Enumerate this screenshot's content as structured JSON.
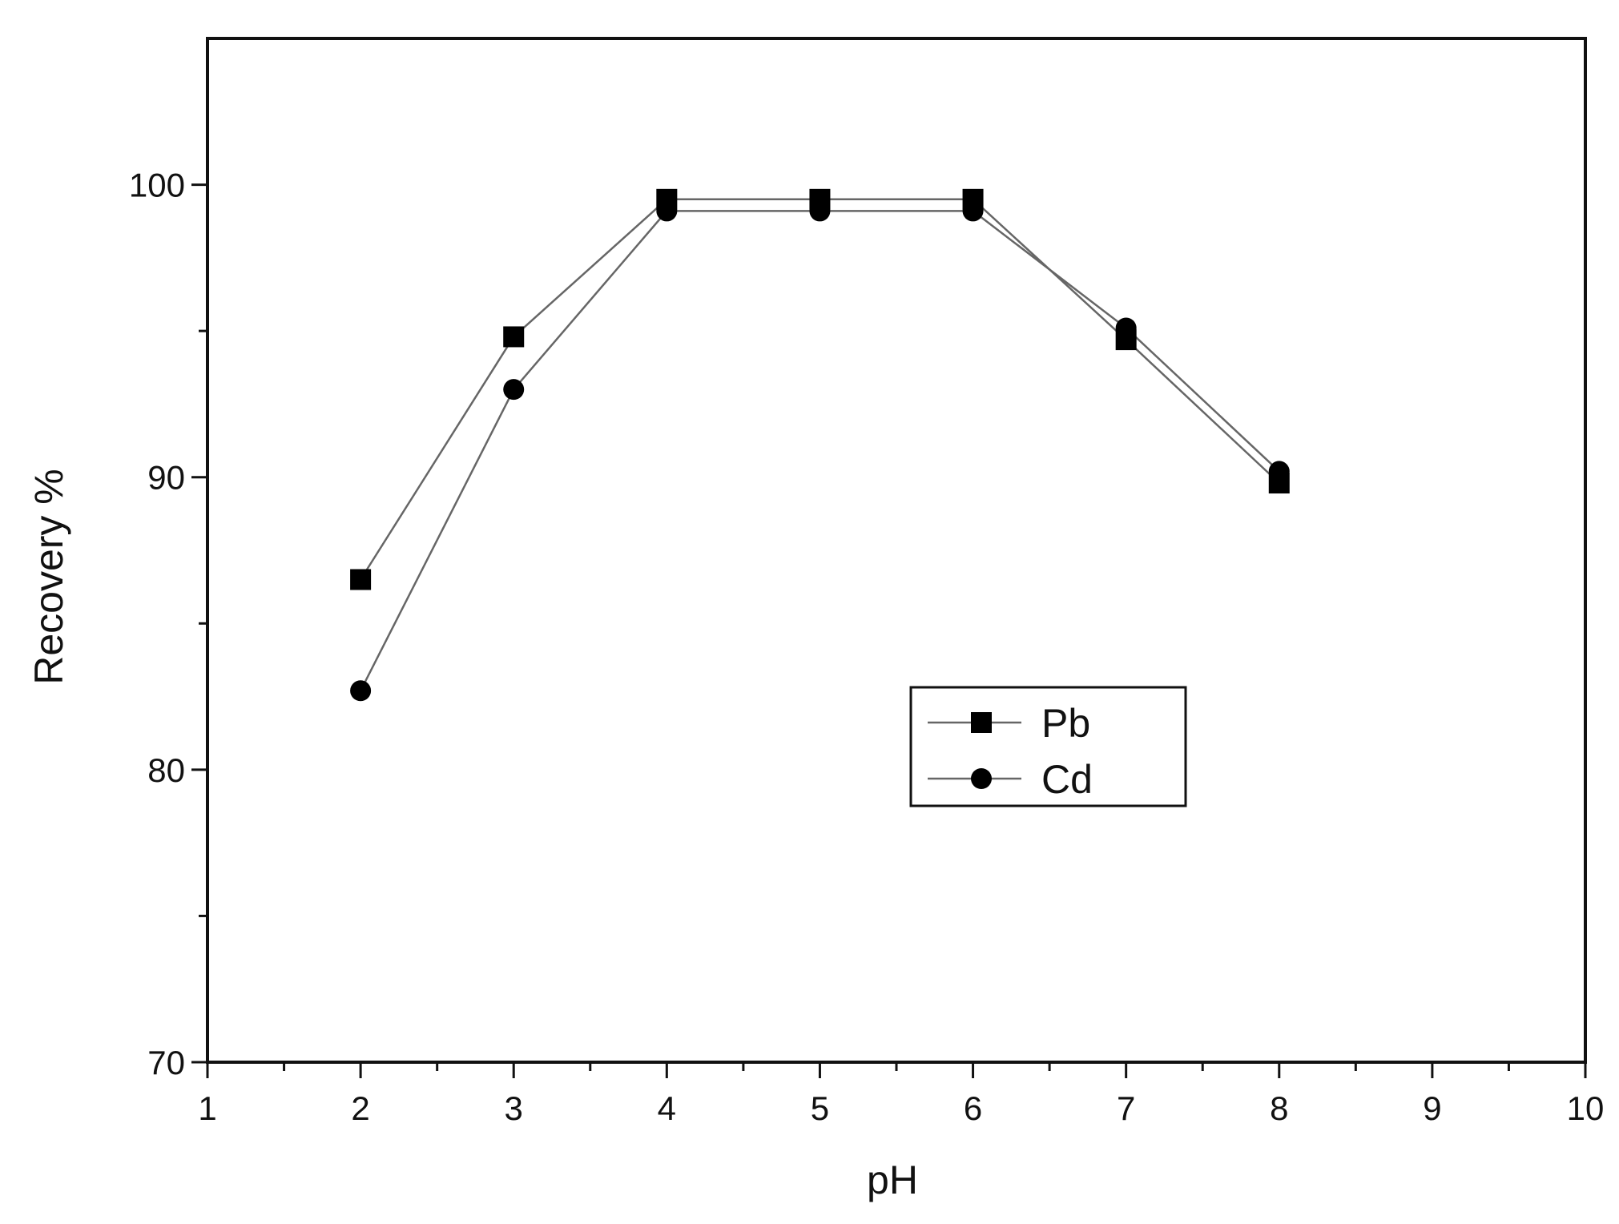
{
  "chart_data": {
    "type": "line",
    "title": "",
    "xlabel": "pH",
    "ylabel": "Recovery %",
    "xlim": [
      1,
      10
    ],
    "ylim": [
      70,
      105
    ],
    "x_ticks": [
      1,
      2,
      3,
      4,
      5,
      6,
      7,
      8,
      9,
      10
    ],
    "y_ticks": [
      70,
      80,
      90,
      100
    ],
    "grid": false,
    "legend_position": "center-right",
    "series": [
      {
        "name": "Pb",
        "marker": "square",
        "color": "#000000",
        "line_color": "#666666",
        "x": [
          2,
          3,
          4,
          5,
          6,
          7,
          8
        ],
        "y": [
          86.5,
          94.8,
          99.5,
          99.5,
          99.5,
          94.7,
          89.8
        ]
      },
      {
        "name": "Cd",
        "marker": "circle",
        "color": "#000000",
        "line_color": "#666666",
        "x": [
          2,
          3,
          4,
          5,
          6,
          7,
          8
        ],
        "y": [
          82.7,
          93,
          99.1,
          99.1,
          99.1,
          95.1,
          90.2
        ]
      }
    ]
  }
}
